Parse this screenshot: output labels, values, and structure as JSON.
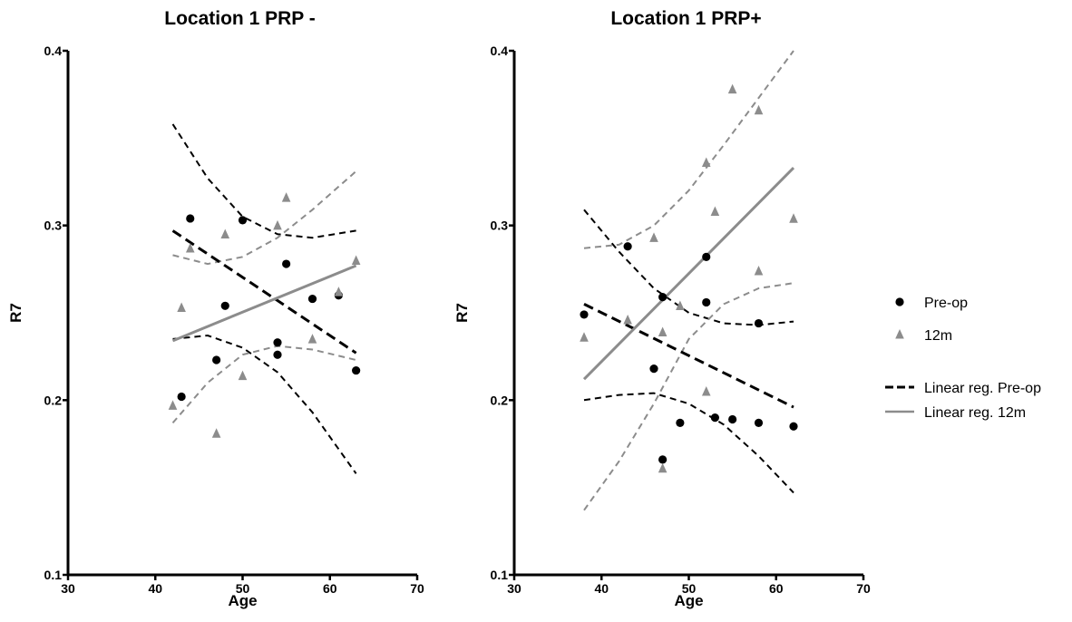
{
  "colors": {
    "preop": "#000000",
    "m12": "#8c8c8c",
    "axis": "#000000"
  },
  "chart_data": [
    {
      "type": "scatter",
      "title": "Location 1 PRP -",
      "xlabel": "Age",
      "ylabel": "R7",
      "xlim": [
        30,
        70
      ],
      "ylim": [
        0.1,
        0.4
      ],
      "xticks": [
        30,
        40,
        50,
        60,
        70
      ],
      "yticks": [
        0.1,
        0.2,
        0.3,
        0.4
      ],
      "series": [
        {
          "name": "Pre-op",
          "marker": "circle",
          "points": [
            [
              43,
              0.202
            ],
            [
              44,
              0.304
            ],
            [
              47,
              0.223
            ],
            [
              48,
              0.254
            ],
            [
              50,
              0.303
            ],
            [
              54,
              0.233
            ],
            [
              54,
              0.226
            ],
            [
              55,
              0.278
            ],
            [
              58,
              0.258
            ],
            [
              61,
              0.26
            ],
            [
              63,
              0.217
            ]
          ]
        },
        {
          "name": "12m",
          "marker": "triangle",
          "points": [
            [
              42,
              0.197
            ],
            [
              43,
              0.253
            ],
            [
              44,
              0.287
            ],
            [
              47,
              0.181
            ],
            [
              48,
              0.295
            ],
            [
              50,
              0.214
            ],
            [
              54,
              0.3
            ],
            [
              55,
              0.316
            ],
            [
              58,
              0.235
            ],
            [
              61,
              0.262
            ],
            [
              63,
              0.28
            ]
          ]
        }
      ],
      "regression": [
        {
          "name": "Linear reg. Pre-op",
          "x": [
            42,
            63
          ],
          "y": [
            0.297,
            0.227
          ],
          "ci_upper": [
            [
              42,
              0.358
            ],
            [
              46,
              0.327
            ],
            [
              50,
              0.305
            ],
            [
              54,
              0.295
            ],
            [
              58,
              0.293
            ],
            [
              63,
              0.297
            ]
          ],
          "ci_lower": [
            [
              42,
              0.235
            ],
            [
              46,
              0.237
            ],
            [
              50,
              0.23
            ],
            [
              54,
              0.216
            ],
            [
              58,
              0.193
            ],
            [
              63,
              0.158
            ]
          ]
        },
        {
          "name": "Linear reg. 12m",
          "x": [
            42,
            63
          ],
          "y": [
            0.234,
            0.277
          ],
          "ci_upper": [
            [
              42,
              0.283
            ],
            [
              46,
              0.278
            ],
            [
              50,
              0.282
            ],
            [
              54,
              0.293
            ],
            [
              58,
              0.309
            ],
            [
              63,
              0.331
            ]
          ],
          "ci_lower": [
            [
              42,
              0.187
            ],
            [
              46,
              0.21
            ],
            [
              50,
              0.226
            ],
            [
              54,
              0.231
            ],
            [
              58,
              0.229
            ],
            [
              63,
              0.223
            ]
          ]
        }
      ]
    },
    {
      "type": "scatter",
      "title": "Location 1 PRP+",
      "xlabel": "Age",
      "ylabel": "R7",
      "xlim": [
        30,
        70
      ],
      "ylim": [
        0.1,
        0.4
      ],
      "xticks": [
        30,
        40,
        50,
        60,
        70
      ],
      "yticks": [
        0.1,
        0.2,
        0.3,
        0.4
      ],
      "series": [
        {
          "name": "Pre-op",
          "marker": "circle",
          "points": [
            [
              38,
              0.249
            ],
            [
              43,
              0.288
            ],
            [
              46,
              0.218
            ],
            [
              47,
              0.259
            ],
            [
              47,
              0.166
            ],
            [
              49,
              0.187
            ],
            [
              52,
              0.282
            ],
            [
              52,
              0.256
            ],
            [
              53,
              0.19
            ],
            [
              55,
              0.189
            ],
            [
              58,
              0.187
            ],
            [
              58,
              0.244
            ],
            [
              62,
              0.185
            ]
          ]
        },
        {
          "name": "12m",
          "marker": "triangle",
          "points": [
            [
              38,
              0.236
            ],
            [
              43,
              0.246
            ],
            [
              46,
              0.293
            ],
            [
              47,
              0.239
            ],
            [
              47,
              0.161
            ],
            [
              49,
              0.254
            ],
            [
              52,
              0.336
            ],
            [
              52,
              0.205
            ],
            [
              53,
              0.308
            ],
            [
              55,
              0.378
            ],
            [
              58,
              0.366
            ],
            [
              58,
              0.274
            ],
            [
              62,
              0.304
            ]
          ]
        }
      ],
      "regression": [
        {
          "name": "Linear reg. Pre-op",
          "x": [
            38,
            62
          ],
          "y": [
            0.255,
            0.196
          ],
          "ci_upper": [
            [
              38,
              0.309
            ],
            [
              42,
              0.285
            ],
            [
              46,
              0.264
            ],
            [
              50,
              0.25
            ],
            [
              54,
              0.244
            ],
            [
              58,
              0.243
            ],
            [
              62,
              0.245
            ]
          ],
          "ci_lower": [
            [
              38,
              0.2
            ],
            [
              42,
              0.203
            ],
            [
              46,
              0.204
            ],
            [
              50,
              0.198
            ],
            [
              54,
              0.186
            ],
            [
              58,
              0.168
            ],
            [
              62,
              0.147
            ]
          ]
        },
        {
          "name": "Linear reg. 12m",
          "x": [
            38,
            62
          ],
          "y": [
            0.212,
            0.333
          ],
          "ci_upper": [
            [
              38,
              0.287
            ],
            [
              42,
              0.289
            ],
            [
              46,
              0.3
            ],
            [
              50,
              0.32
            ],
            [
              54,
              0.346
            ],
            [
              58,
              0.373
            ],
            [
              62,
              0.4
            ]
          ],
          "ci_lower": [
            [
              38,
              0.137
            ],
            [
              42,
              0.165
            ],
            [
              46,
              0.198
            ],
            [
              50,
              0.235
            ],
            [
              54,
              0.255
            ],
            [
              58,
              0.264
            ],
            [
              62,
              0.267
            ]
          ]
        }
      ]
    }
  ],
  "legend": {
    "placement": "right",
    "items": [
      {
        "label": "Pre-op",
        "marker": "circle"
      },
      {
        "label": "12m",
        "marker": "triangle"
      },
      {
        "label": "Linear reg. Pre-op",
        "marker": "dashed-line"
      },
      {
        "label": "Linear reg. 12m",
        "marker": "solid-line"
      }
    ]
  }
}
